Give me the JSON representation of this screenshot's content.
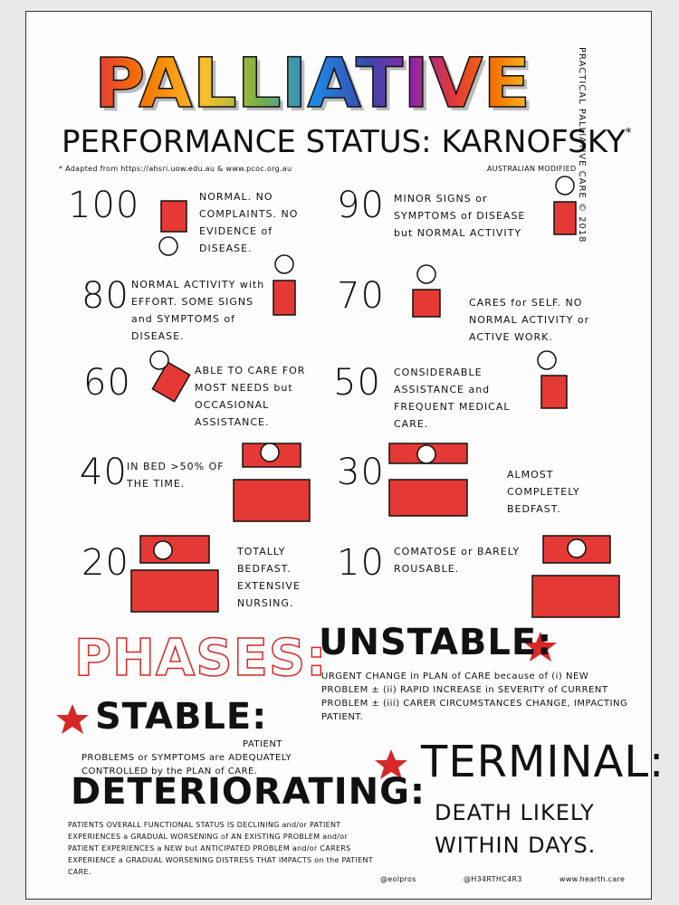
{
  "header": {
    "title": "PALLIATIVE",
    "credit": "PRACTICAL PALLIATIVE CARE © 2018",
    "subtitle": "PERFORMANCE STATUS: KARNOFSKY",
    "subtitle_mark": "*",
    "source": "* Adapted from https://ahsri.uow.edu.au & www.pcoc.org.au",
    "modifier": "AUSTRALIAN MODIFIED"
  },
  "scores": [
    {
      "score": 100,
      "description": "NORMAL. NO COMPLAINTS. NO EVIDENCE of DISEASE."
    },
    {
      "score": 90,
      "description": "MINOR SIGNS or SYMPTOMS of DISEASE but NORMAL ACTIVITY"
    },
    {
      "score": 80,
      "description": "NORMAL ACTIVITY with EFFORT. SOME SIGNS and SYMPTOMS of DISEASE."
    },
    {
      "score": 70,
      "description": "CARES for SELF. NO NORMAL ACTIVITY or ACTIVE WORK."
    },
    {
      "score": 60,
      "description": "ABLE TO CARE FOR MOST NEEDS but OCCASIONAL ASSISTANCE."
    },
    {
      "score": 50,
      "description": "CONSIDERABLE ASSISTANCE and FREQUENT MEDICAL CARE."
    },
    {
      "score": 40,
      "description": "IN BED >50% OF THE TIME."
    },
    {
      "score": 30,
      "description": "ALMOST COMPLETELY BEDFAST."
    },
    {
      "score": 20,
      "description": "TOTALLY BEDFAST. EXTENSIVE NURSING."
    },
    {
      "score": 10,
      "description": "COMATOSE or BARELY ROUSABLE."
    }
  ],
  "phases": {
    "heading": "PHASES:",
    "unstable": {
      "name": "UNSTABLE:",
      "description": "URGENT CHANGE in PLAN of CARE because of (i) NEW PROBLEM ± (ii) RAPID INCREASE in SEVERITY of CURRENT PROBLEM ± (iii) CARER CIRCUMSTANCES CHANGE, IMPACTING PATIENT."
    },
    "stable": {
      "name": "STABLE:",
      "description": "PATIENT PROBLEMS or SYMPTOMS are ADEQUATELY CONTROLLED by the PLAN of CARE."
    },
    "deteriorating": {
      "name": "DETERIORATING:",
      "description": "PATIENTS OVERALL FUNCTIONAL STATUS IS DECLINING and/or PATIENT EXPERIENCES a GRADUAL WORSENING of AN EXISTING PROBLEM and/or PATIENT EXPERIENCES a NEW but ANTICIPATED PROBLEM and/or CARERS EXPERIENCE a GRADUAL WORSENING DISTRESS THAT IMPACTS on the PATIENT CARE."
    },
    "terminal": {
      "name": "TERMINAL:",
      "description": "DEATH LIKELY WITHIN DAYS."
    }
  },
  "footer": {
    "handles": [
      "@eolpros",
      "@H34RTHC4R3",
      "www.hearth.care"
    ]
  }
}
